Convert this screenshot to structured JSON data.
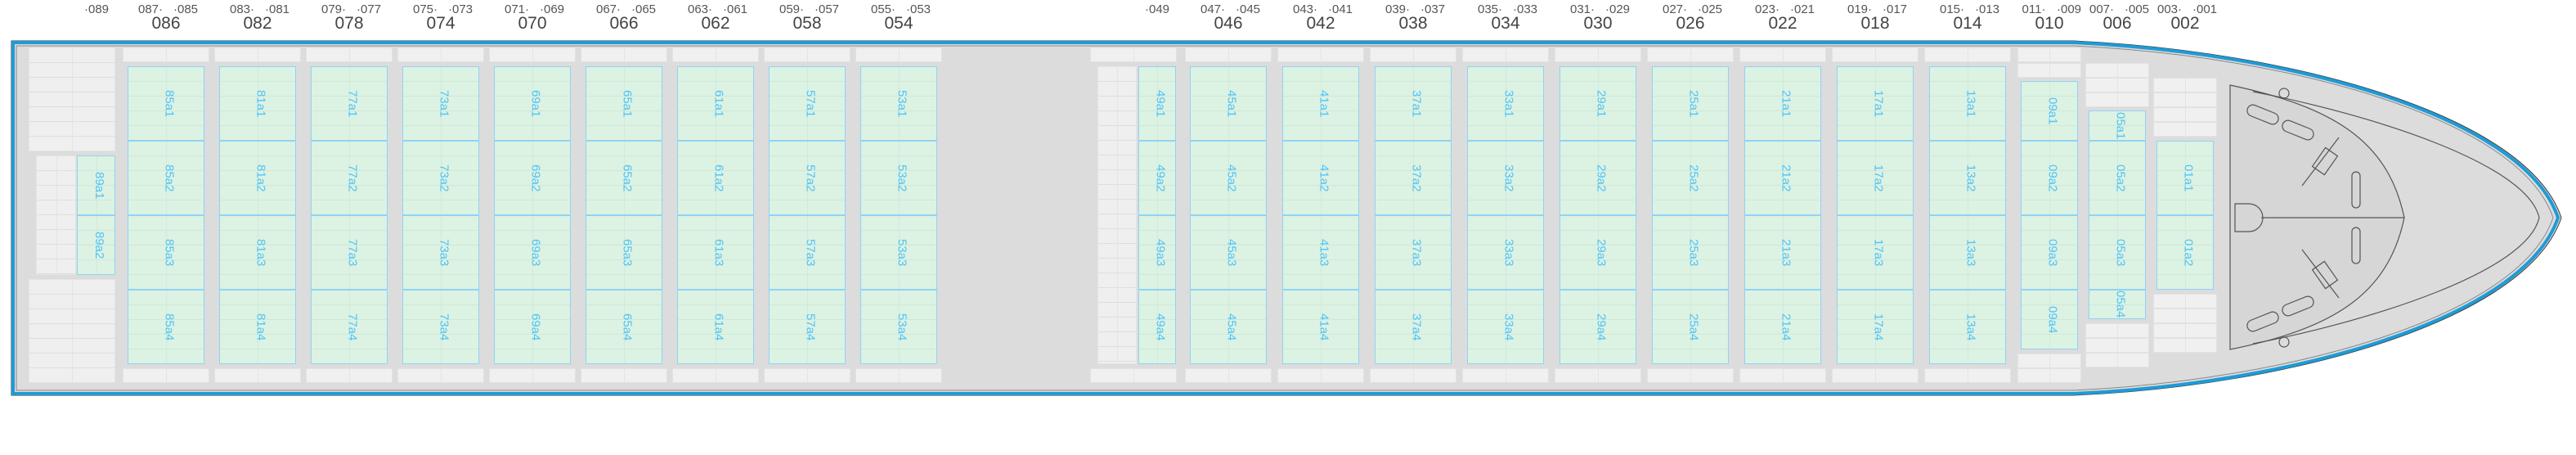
{
  "colors": {
    "slot_fill": "#dcf2e3",
    "slot_border": "#8fd3f5",
    "slot_text": "#4fc3f7",
    "hull_stroke": "#1e9bd7",
    "deck": "#dcdcdc",
    "hatch": "#f0f0f0"
  },
  "bays": [
    {
      "id": "089",
      "single": "·089",
      "slots": [
        "89a1",
        "89a2"
      ]
    },
    {
      "id": "086",
      "bay": "086",
      "fwd": "087·",
      "aft": "·085",
      "slots": [
        "85a1",
        "85a2",
        "85a3",
        "85a4"
      ]
    },
    {
      "id": "082",
      "bay": "082",
      "fwd": "083·",
      "aft": "·081",
      "slots": [
        "81a1",
        "81a2",
        "81a3",
        "81a4"
      ]
    },
    {
      "id": "078",
      "bay": "078",
      "fwd": "079·",
      "aft": "·077",
      "slots": [
        "77a1",
        "77a2",
        "77a3",
        "77a4"
      ]
    },
    {
      "id": "074",
      "bay": "074",
      "fwd": "075·",
      "aft": "·073",
      "slots": [
        "73a1",
        "73a2",
        "73a3",
        "73a4"
      ]
    },
    {
      "id": "070",
      "bay": "070",
      "fwd": "071·",
      "aft": "·069",
      "slots": [
        "69a1",
        "69a2",
        "69a3",
        "69a4"
      ]
    },
    {
      "id": "066",
      "bay": "066",
      "fwd": "067·",
      "aft": "·065",
      "slots": [
        "65a1",
        "65a2",
        "65a3",
        "65a4"
      ]
    },
    {
      "id": "062",
      "bay": "062",
      "fwd": "063·",
      "aft": "·061",
      "slots": [
        "61a1",
        "61a2",
        "61a3",
        "61a4"
      ]
    },
    {
      "id": "058",
      "bay": "058",
      "fwd": "059·",
      "aft": "·057",
      "slots": [
        "57a1",
        "57a2",
        "57a3",
        "57a4"
      ]
    },
    {
      "id": "054",
      "bay": "054",
      "fwd": "055·",
      "aft": "·053",
      "slots": [
        "53a1",
        "53a2",
        "53a3",
        "53a4"
      ]
    },
    {
      "id": "049",
      "single": "·049",
      "slots": [
        "49a1",
        "49a2",
        "49a3",
        "49a4"
      ]
    },
    {
      "id": "046",
      "bay": "046",
      "fwd": "047·",
      "aft": "·045",
      "slots": [
        "45a1",
        "45a2",
        "45a3",
        "45a4"
      ]
    },
    {
      "id": "042",
      "bay": "042",
      "fwd": "043·",
      "aft": "·041",
      "slots": [
        "41a1",
        "41a2",
        "41a3",
        "41a4"
      ]
    },
    {
      "id": "038",
      "bay": "038",
      "fwd": "039·",
      "aft": "·037",
      "slots": [
        "37a1",
        "37a2",
        "37a3",
        "37a4"
      ]
    },
    {
      "id": "034",
      "bay": "034",
      "fwd": "035·",
      "aft": "·033",
      "slots": [
        "33a1",
        "33a2",
        "33a3",
        "33a4"
      ]
    },
    {
      "id": "030",
      "bay": "030",
      "fwd": "031·",
      "aft": "·029",
      "slots": [
        "29a1",
        "29a2",
        "29a3",
        "29a4"
      ]
    },
    {
      "id": "026",
      "bay": "026",
      "fwd": "027·",
      "aft": "·025",
      "slots": [
        "25a1",
        "25a2",
        "25a3",
        "25a4"
      ]
    },
    {
      "id": "022",
      "bay": "022",
      "fwd": "023·",
      "aft": "·021",
      "slots": [
        "21a1",
        "21a2",
        "21a3",
        "21a4"
      ]
    },
    {
      "id": "018",
      "bay": "018",
      "fwd": "019·",
      "aft": "·017",
      "slots": [
        "17a1",
        "17a2",
        "17a3",
        "17a4"
      ]
    },
    {
      "id": "014",
      "bay": "014",
      "fwd": "015·",
      "aft": "·013",
      "slots": [
        "13a1",
        "13a2",
        "13a3",
        "13a4"
      ]
    },
    {
      "id": "010",
      "bay": "010",
      "fwd": "011·",
      "aft": "·009",
      "slots": [
        "09a1",
        "09a2",
        "09a3",
        "09a4"
      ]
    },
    {
      "id": "006",
      "bay": "006",
      "fwd": "007·",
      "aft": "·005",
      "slots": [
        "05a1",
        "05a2",
        "05a3",
        "05a4"
      ]
    },
    {
      "id": "002",
      "bay": "002",
      "fwd": "003·",
      "aft": "·001",
      "slots": [
        "01a1",
        "01a2"
      ]
    }
  ]
}
